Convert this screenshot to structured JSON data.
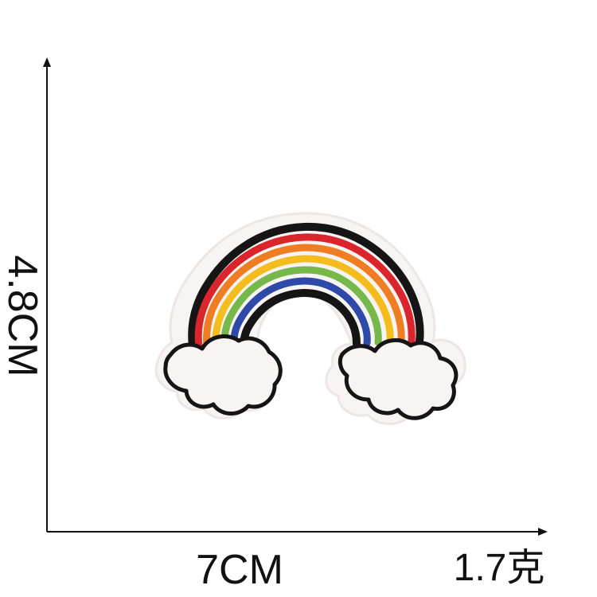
{
  "dimensions": {
    "height_label": "4.8CM",
    "width_label": "7CM",
    "weight_label": "1.7克"
  },
  "colors": {
    "background": "#ffffff",
    "axis": "#111111",
    "felt": "#f7f4f3",
    "felt_shadow": "#ece7e5",
    "outline": "#151515",
    "red": "#d9252b",
    "orange": "#ef7d22",
    "yellow": "#f4bd1d",
    "green": "#77b84b",
    "blue": "#2e49a8"
  }
}
